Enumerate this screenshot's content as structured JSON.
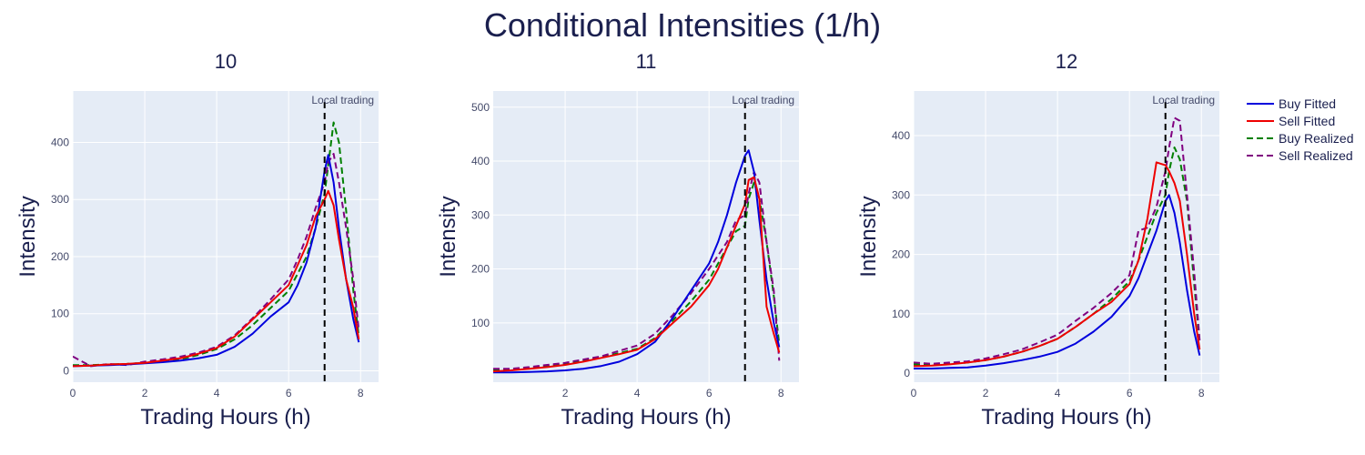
{
  "chart_data": {
    "type": "line",
    "title": "Conditional Intensities (1/h)",
    "legend_position": "top-right",
    "series_styles": [
      {
        "name": "Buy Fitted",
        "color": "#0000dd",
        "dash": "solid"
      },
      {
        "name": "Sell Fitted",
        "color": "#ee0000",
        "dash": "solid"
      },
      {
        "name": "Buy Realized",
        "color": "#008000",
        "dash": "dashed"
      },
      {
        "name": "Sell Realized",
        "color": "#800080",
        "dash": "dashed"
      }
    ],
    "vline": {
      "x": 7,
      "color": "#000000",
      "dash": "dashed",
      "label": "Local trading"
    },
    "panels": [
      {
        "subtitle": "10",
        "xlabel": "Trading Hours (h)",
        "ylabel": "Intensity",
        "xlim": [
          0,
          8.5
        ],
        "ylim": [
          -20,
          490
        ],
        "xticks": [
          0,
          2,
          4,
          6,
          8
        ],
        "yticks": [
          0,
          100,
          200,
          300,
          400
        ],
        "x": [
          0,
          0.5,
          1,
          1.5,
          2,
          2.5,
          3,
          3.5,
          4,
          4.5,
          5,
          5.5,
          6,
          6.25,
          6.5,
          6.75,
          7,
          7.1,
          7.25,
          7.4,
          7.6,
          7.8,
          7.95
        ],
        "series": [
          {
            "name": "Buy Fitted",
            "values": [
              8,
              9,
              10,
              11,
              13,
              15,
              18,
              22,
              28,
              42,
              65,
              95,
              120,
              150,
              190,
              250,
              350,
              378,
              330,
              250,
              160,
              90,
              50
            ]
          },
          {
            "name": "Sell Fitted",
            "values": [
              8,
              9,
              11,
              12,
              14,
              18,
              22,
              30,
              40,
              60,
              90,
              120,
              150,
              185,
              220,
              270,
              300,
              315,
              290,
              230,
              160,
              110,
              55
            ]
          },
          {
            "name": "Buy Realized",
            "values": [
              10,
              10,
              11,
              12,
              14,
              16,
              20,
              28,
              38,
              55,
              80,
              110,
              140,
              170,
              200,
              250,
              310,
              360,
              435,
              400,
              280,
              140,
              60
            ]
          },
          {
            "name": "Sell Realized",
            "values": [
              25,
              8,
              12,
              10,
              16,
              20,
              25,
              32,
              42,
              62,
              92,
              125,
              160,
              195,
              235,
              285,
              330,
              365,
              380,
              330,
              250,
              160,
              70
            ]
          }
        ]
      },
      {
        "subtitle": "11",
        "xlabel": "Trading Hours (h)",
        "ylabel": "Intensity",
        "xlim": [
          0,
          8.5
        ],
        "ylim": [
          -10,
          530
        ],
        "xticks": [
          2,
          4,
          6,
          8
        ],
        "yticks": [
          100,
          200,
          300,
          400,
          500
        ],
        "x": [
          0,
          0.5,
          1,
          1.5,
          2,
          2.5,
          3,
          3.5,
          4,
          4.5,
          5,
          5.5,
          6,
          6.25,
          6.5,
          6.75,
          7,
          7.1,
          7.25,
          7.4,
          7.6,
          7.8,
          7.95
        ],
        "series": [
          {
            "name": "Buy Fitted",
            "values": [
              8,
              8,
              9,
              10,
              12,
              15,
              20,
              28,
              42,
              65,
              110,
              160,
              210,
              250,
              300,
              360,
              410,
              420,
              380,
              290,
              180,
              100,
              55
            ]
          },
          {
            "name": "Sell Fitted",
            "values": [
              10,
              12,
              15,
              18,
              22,
              28,
              35,
              42,
              50,
              70,
              100,
              130,
              170,
              200,
              240,
              280,
              320,
              365,
              370,
              330,
              130,
              80,
              45
            ]
          },
          {
            "name": "Buy Realized",
            "values": [
              12,
              14,
              16,
              20,
              24,
              30,
              36,
              44,
              52,
              72,
              105,
              140,
              180,
              210,
              240,
              270,
              280,
              330,
              360,
              330,
              250,
              150,
              60
            ]
          },
          {
            "name": "Sell Realized",
            "values": [
              15,
              15,
              18,
              22,
              26,
              32,
              38,
              48,
              58,
              80,
              115,
              155,
              200,
              225,
              250,
              290,
              300,
              340,
              380,
              360,
              250,
              160,
              30
            ]
          }
        ]
      },
      {
        "subtitle": "12",
        "xlabel": "Trading Hours (h)",
        "ylabel": "Intensity",
        "xlim": [
          0,
          8.5
        ],
        "ylim": [
          -15,
          475
        ],
        "xticks": [
          0,
          2,
          4,
          6,
          8
        ],
        "yticks": [
          0,
          100,
          200,
          300,
          400
        ],
        "x": [
          0,
          0.5,
          1,
          1.5,
          2,
          2.5,
          3,
          3.5,
          4,
          4.5,
          5,
          5.5,
          6,
          6.25,
          6.5,
          6.75,
          7,
          7.1,
          7.25,
          7.4,
          7.6,
          7.8,
          7.95
        ],
        "series": [
          {
            "name": "Buy Fitted",
            "values": [
              8,
              8,
              9,
              10,
              13,
              17,
              22,
              28,
              36,
              50,
              70,
              95,
              130,
              160,
              200,
              240,
              290,
              300,
              270,
              220,
              140,
              70,
              30
            ]
          },
          {
            "name": "Sell Fitted",
            "values": [
              12,
              13,
              15,
              18,
              22,
              28,
              36,
              46,
              58,
              78,
              100,
              120,
              150,
              190,
              260,
              355,
              350,
              340,
              320,
              290,
              200,
              100,
              40
            ]
          },
          {
            "name": "Buy Realized",
            "values": [
              15,
              14,
              16,
              18,
              22,
              28,
              36,
              46,
              58,
              78,
              100,
              125,
              155,
              190,
              230,
              270,
              300,
              340,
              380,
              360,
              290,
              150,
              50
            ]
          },
          {
            "name": "Sell Realized",
            "values": [
              18,
              16,
              18,
              20,
              25,
              32,
              40,
              52,
              65,
              88,
              110,
              135,
              165,
              240,
              245,
              280,
              340,
              380,
              430,
              425,
              300,
              170,
              55
            ]
          }
        ]
      }
    ]
  }
}
